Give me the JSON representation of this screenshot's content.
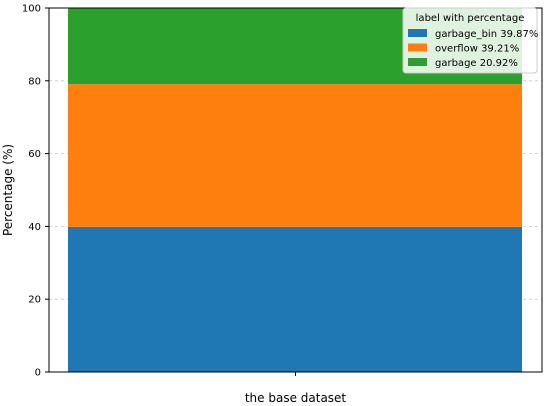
{
  "chart_data": {
    "type": "bar",
    "stacked": true,
    "categories": [
      "the base dataset"
    ],
    "series": [
      {
        "name": "garbage_bin 39.87%",
        "values": [
          39.87
        ],
        "color": "#1f77b4"
      },
      {
        "name": "overflow 39.21%",
        "values": [
          39.21
        ],
        "color": "#ff7f0e"
      },
      {
        "name": "garbage 20.92%",
        "values": [
          20.92
        ],
        "color": "#2ca02c"
      }
    ],
    "title": "",
    "xlabel": "the base dataset",
    "ylabel": "Percentage (%)",
    "ylim": [
      0,
      100
    ],
    "yticks": [
      0,
      20,
      40,
      60,
      80,
      100
    ],
    "grid": true,
    "legend": {
      "title": "label with percentage",
      "position": "top-right"
    }
  }
}
